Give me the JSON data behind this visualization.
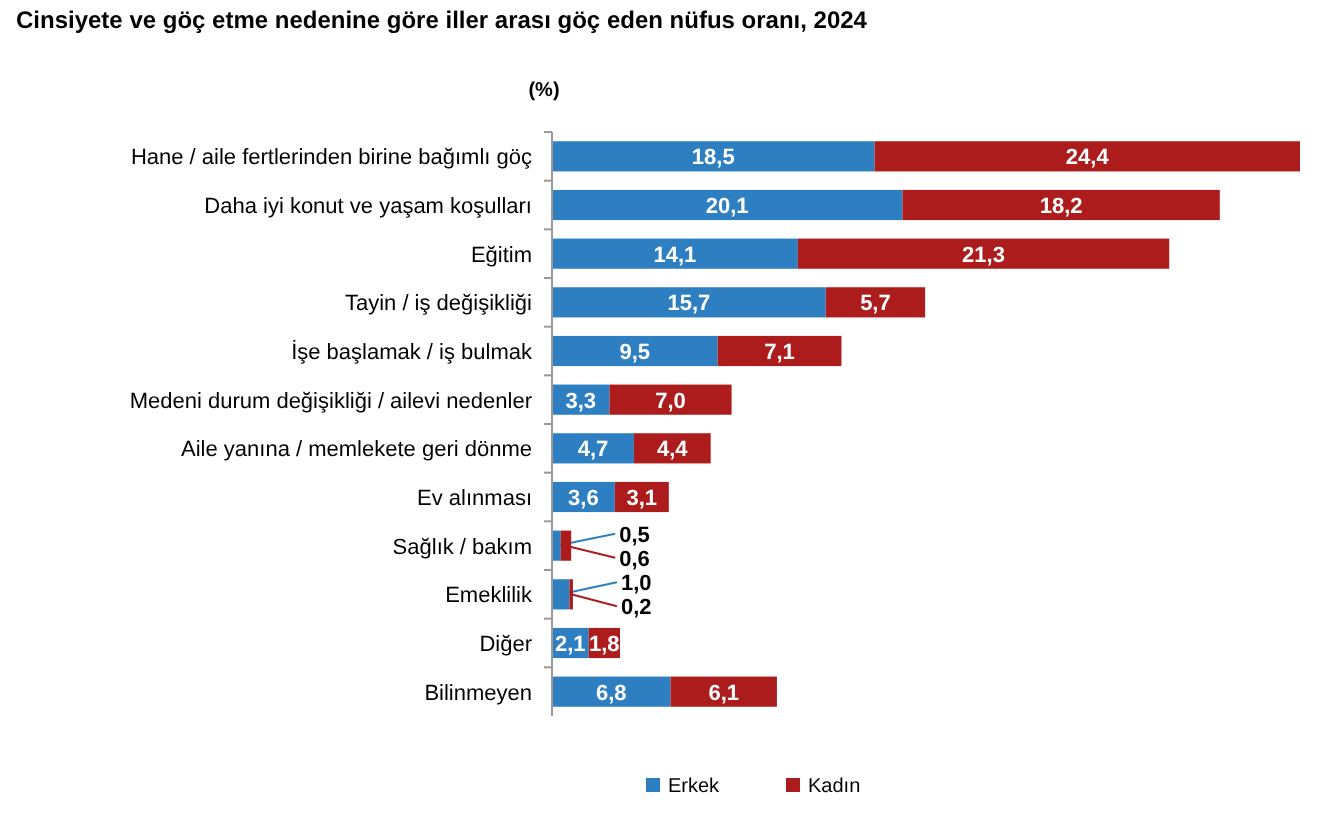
{
  "chart_data": {
    "type": "bar",
    "orientation": "horizontal",
    "stacked": true,
    "title": "Cinsiyete ve göç etme nedenine göre iller arası göç eden nüfus oranı, 2024",
    "annotations": [
      "(%)"
    ],
    "categories": [
      "Hane / aile fertlerinden birine bağımlı göç",
      "Daha iyi konut ve yaşam koşulları",
      "Eğitim",
      "Tayin / iş değişikliği",
      "İşe başlamak / iş bulmak",
      "Medeni durum değişikliği / ailevi nedenler",
      "Aile yanına / memlekete geri dönme",
      "Ev alınması",
      "Sağlık / bakım",
      "Emeklilik",
      "Diğer",
      "Bilinmeyen"
    ],
    "series": [
      {
        "name": "Erkek",
        "color": "#2e7fc1",
        "values": [
          18.5,
          20.1,
          14.1,
          15.7,
          9.5,
          3.3,
          4.7,
          3.6,
          0.5,
          1.0,
          2.1,
          6.8
        ],
        "value_labels": [
          "18,5",
          "20,1",
          "14,1",
          "15,7",
          "9,5",
          "3,3",
          "4,7",
          "3,6",
          "0,5",
          "1,0",
          "2,1",
          "6,8"
        ]
      },
      {
        "name": "Kadın",
        "color": "#ad1c1c",
        "values": [
          24.4,
          18.2,
          21.3,
          5.7,
          7.1,
          7.0,
          4.4,
          3.1,
          0.6,
          0.2,
          1.8,
          6.1
        ],
        "value_labels": [
          "24,4",
          "18,2",
          "21,3",
          "5,7",
          "7,1",
          "7,0",
          "4,4",
          "3,1",
          "0,6",
          "0,2",
          "1,8",
          "6,1"
        ]
      }
    ],
    "legend": "bottom"
  }
}
